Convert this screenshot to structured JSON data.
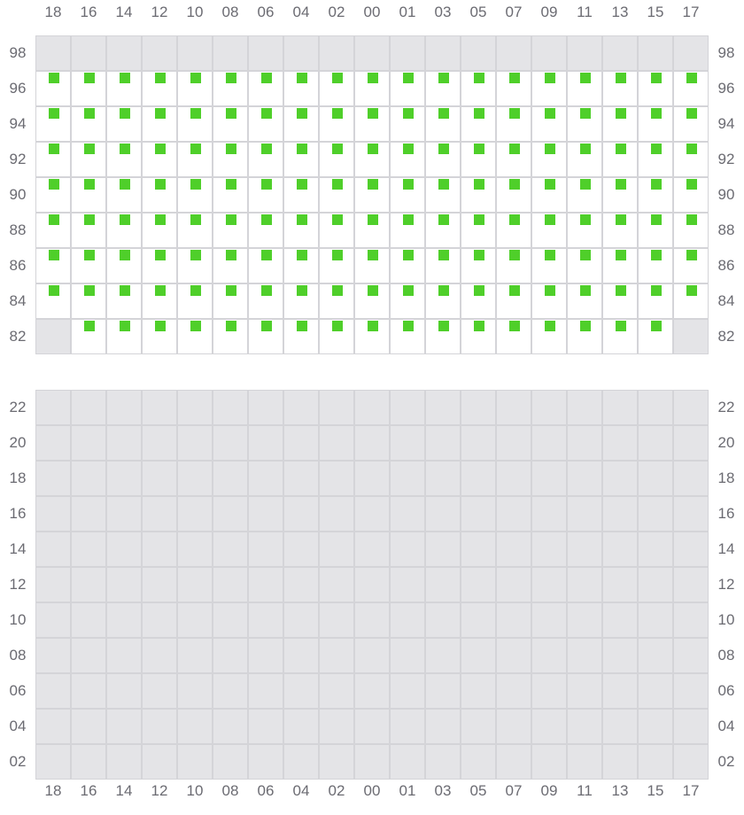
{
  "columns": [
    "18",
    "16",
    "14",
    "12",
    "10",
    "08",
    "06",
    "04",
    "02",
    "00",
    "01",
    "03",
    "05",
    "07",
    "09",
    "11",
    "13",
    "15",
    "17"
  ],
  "legend": {
    "A": "available",
    "X": "unavailable"
  },
  "colors": {
    "available_marker": "#4fcf2a",
    "unavailable_fill": "#e4e4e7",
    "grid_line": "#d4d4d8",
    "label_text": "#6b6b72"
  },
  "top_block": {
    "rows": [
      {
        "label": "98",
        "seats": "XXXXXXXXXXXXXXXXXXX"
      },
      {
        "label": "96",
        "seats": "AAAAAAAAAAAAAAAAAAA"
      },
      {
        "label": "94",
        "seats": "AAAAAAAAAAAAAAAAAAA"
      },
      {
        "label": "92",
        "seats": "AAAAAAAAAAAAAAAAAAA"
      },
      {
        "label": "90",
        "seats": "AAAAAAAAAAAAAAAAAAA"
      },
      {
        "label": "88",
        "seats": "AAAAAAAAAAAAAAAAAAA"
      },
      {
        "label": "86",
        "seats": "AAAAAAAAAAAAAAAAAAA"
      },
      {
        "label": "84",
        "seats": "AAAAAAAAAAAAAAAAAAA"
      },
      {
        "label": "82",
        "seats": "XAAAAAAAAAAAAAAAAAX"
      }
    ]
  },
  "bottom_block": {
    "rows": [
      {
        "label": "22",
        "seats": "XXXXXXXXXXXXXXXXXXX"
      },
      {
        "label": "20",
        "seats": "XXXXXXXXXXXXXXXXXXX"
      },
      {
        "label": "18",
        "seats": "XXXXXXXXXXXXXXXXXXX"
      },
      {
        "label": "16",
        "seats": "XXXXXXXXXXXXXXXXXXX"
      },
      {
        "label": "14",
        "seats": "XXXXXXXXXXXXXXXXXXX"
      },
      {
        "label": "12",
        "seats": "XXXXXXXXXXXXXXXXXXX"
      },
      {
        "label": "10",
        "seats": "XXXXXXXXXXXXXXXXXXX"
      },
      {
        "label": "08",
        "seats": "XXXXXXXXXXXXXXXXXXX"
      },
      {
        "label": "06",
        "seats": "XXXXXXXXXXXXXXXXXXX"
      },
      {
        "label": "04",
        "seats": "XXXXXXXXXXXXXXXXXXX"
      },
      {
        "label": "02",
        "seats": "XXXXXXXXXXXXXXXXXXX"
      }
    ]
  }
}
